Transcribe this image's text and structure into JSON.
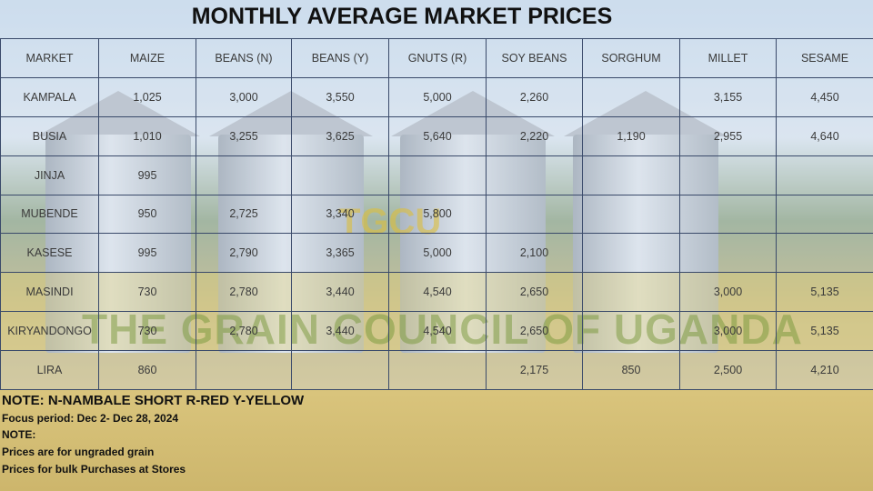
{
  "header": {
    "title": "MONTHLY AVERAGE MARKET PRICES"
  },
  "watermark": {
    "logo": "TGCU",
    "text": "THE GRAIN COUNCIL OF UGANDA"
  },
  "table": {
    "columns": [
      "MARKET",
      "MAIZE",
      "BEANS (N)",
      "BEANS (Y)",
      "GNUTS (R)",
      "SOY BEANS",
      "SORGHUM",
      "MILLET",
      "SESAME"
    ],
    "rows": [
      [
        "KAMPALA",
        "1,025",
        "3,000",
        "3,550",
        "5,000",
        "2,260",
        null,
        "3,155",
        "4,450"
      ],
      [
        "BUSIA",
        "1,010",
        "3,255",
        "3,625",
        "5,640",
        "2,220",
        "1,190",
        "2,955",
        "4,640"
      ],
      [
        "JINJA",
        "995",
        null,
        null,
        null,
        null,
        null,
        null,
        null
      ],
      [
        "MUBENDE",
        "950",
        "2,725",
        "3,340",
        "5,800",
        null,
        null,
        null,
        null
      ],
      [
        "KASESE",
        "995",
        "2,790",
        "3,365",
        "5,000",
        "2,100",
        null,
        null,
        null
      ],
      [
        "MASINDI",
        "730",
        "2,780",
        "3,440",
        "4,540",
        "2,650",
        null,
        "3,000",
        "5,135"
      ],
      [
        "KIRYANDONGO",
        "730",
        "2,780",
        "3,440",
        "4,540",
        "2,650",
        null,
        "3,000",
        "5,135"
      ],
      [
        "LIRA",
        "860",
        null,
        null,
        null,
        "2,175",
        "850",
        "2,500",
        "4,210"
      ]
    ]
  },
  "notes": {
    "legend": "NOTE: N-NAMBALE SHORT R-RED Y-YELLOW",
    "period": "Focus period: Dec 2- Dec 28, 2024",
    "heading": "NOTE:",
    "lines": [
      "Prices are for ungraded grain",
      "Prices for bulk Purchases at Stores"
    ]
  }
}
